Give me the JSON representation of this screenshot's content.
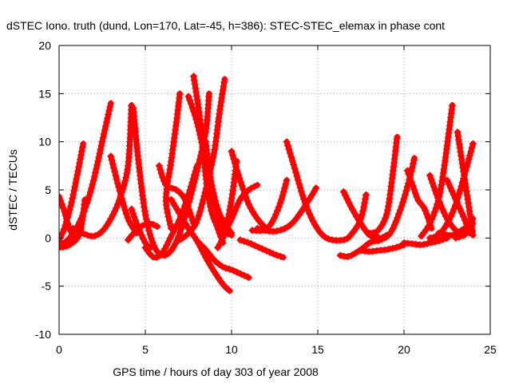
{
  "chart_data": {
    "type": "scatter",
    "title": "dSTEC Iono. truth (dund, Lon=170, Lat=-45, h=386): STEC-STEC_elemax in phase cont",
    "xlabel": "GPS time / hours of day 303 of year 2008",
    "ylabel": "dSTEC  / TECUs",
    "xlim": [
      0,
      25
    ],
    "ylim": [
      -10,
      20
    ],
    "xticks": [
      "0",
      "5",
      "10",
      "15",
      "20",
      "25"
    ],
    "yticks": [
      "-10",
      "-5",
      "0",
      "5",
      "10",
      "15",
      "20"
    ],
    "grid": true,
    "series_color": "#ff0000",
    "marker": "plus",
    "arcs": [
      [
        [
          0.0,
          4.3
        ],
        [
          0.3,
          2.8
        ],
        [
          0.6,
          1.0
        ],
        [
          0.9,
          0.0
        ]
      ],
      [
        [
          0.0,
          -0.2
        ],
        [
          0.3,
          1.0
        ],
        [
          0.7,
          3.5
        ],
        [
          1.1,
          7.0
        ],
        [
          1.4,
          9.8
        ]
      ],
      [
        [
          0.0,
          -0.8
        ],
        [
          0.5,
          -0.2
        ],
        [
          1.0,
          1.0
        ],
        [
          1.5,
          3.0
        ],
        [
          2.0,
          6.0
        ],
        [
          2.5,
          10.0
        ],
        [
          3.0,
          14.0
        ]
      ],
      [
        [
          0.0,
          -1.0
        ],
        [
          0.6,
          -0.7
        ],
        [
          1.2,
          0.5
        ],
        [
          1.5,
          4.0
        ]
      ],
      [
        [
          0.8,
          1.0
        ],
        [
          1.5,
          0.4
        ],
        [
          2.0,
          0.2
        ],
        [
          2.5,
          0.7
        ],
        [
          3.0,
          2.0
        ],
        [
          3.5,
          4.0
        ],
        [
          4.0,
          7.5
        ],
        [
          4.2,
          13.8
        ]
      ],
      [
        [
          3.0,
          8.5
        ],
        [
          3.5,
          5.0
        ],
        [
          4.0,
          2.0
        ],
        [
          4.5,
          0.5
        ]
      ],
      [
        [
          4.2,
          3.0
        ],
        [
          4.5,
          1.5
        ],
        [
          5.0,
          -0.5
        ],
        [
          5.3,
          -1.0
        ]
      ],
      [
        [
          4.0,
          -0.2
        ],
        [
          4.6,
          1.0
        ],
        [
          5.2,
          1.5
        ],
        [
          5.7,
          1.2
        ]
      ],
      [
        [
          4.3,
          13.5
        ],
        [
          4.6,
          8.0
        ],
        [
          5.0,
          2.5
        ],
        [
          5.5,
          -0.8
        ],
        [
          6.0,
          -1.8
        ],
        [
          6.5,
          -1.3
        ],
        [
          7.0,
          0.5
        ],
        [
          7.5,
          3.5
        ],
        [
          8.0,
          7.0
        ],
        [
          8.5,
          11.0
        ],
        [
          8.7,
          15.0
        ]
      ],
      [
        [
          5.0,
          -1.0
        ],
        [
          5.5,
          -2.0
        ],
        [
          6.0,
          -1.5
        ],
        [
          6.5,
          0.2
        ],
        [
          7.0,
          2.0
        ],
        [
          7.5,
          4.5
        ],
        [
          8.0,
          7.5
        ]
      ],
      [
        [
          5.8,
          7.5
        ],
        [
          6.2,
          5.5
        ],
        [
          6.8,
          5.0
        ],
        [
          7.3,
          4.0
        ],
        [
          7.8,
          1.5
        ]
      ],
      [
        [
          6.5,
          1.0
        ],
        [
          6.2,
          4.0
        ],
        [
          6.5,
          8.0
        ],
        [
          6.8,
          12.0
        ],
        [
          7.0,
          15.0
        ]
      ],
      [
        [
          7.5,
          14.7
        ],
        [
          8.0,
          12.0
        ],
        [
          8.5,
          8.0
        ],
        [
          9.0,
          4.0
        ],
        [
          9.5,
          1.0
        ],
        [
          10.0,
          0.3
        ]
      ],
      [
        [
          7.8,
          16.8
        ],
        [
          8.2,
          12.0
        ],
        [
          8.5,
          6.5
        ],
        [
          8.8,
          3.0
        ],
        [
          9.2,
          1.0
        ],
        [
          9.5,
          -0.5
        ]
      ],
      [
        [
          6.5,
          4.0
        ],
        [
          7.0,
          2.5
        ],
        [
          7.5,
          1.0
        ],
        [
          8.0,
          -0.3
        ],
        [
          8.5,
          -2.0
        ],
        [
          9.0,
          -3.5
        ],
        [
          9.5,
          -4.8
        ],
        [
          9.9,
          -5.5
        ]
      ],
      [
        [
          7.0,
          -0.2
        ],
        [
          7.5,
          0.5
        ],
        [
          8.0,
          1.8
        ],
        [
          8.5,
          5.0
        ],
        [
          9.0,
          9.0
        ],
        [
          9.3,
          13.0
        ],
        [
          9.6,
          16.5
        ]
      ],
      [
        [
          8.5,
          10.0
        ],
        [
          8.8,
          6.0
        ],
        [
          9.2,
          3.0
        ],
        [
          9.6,
          1.5
        ],
        [
          10.0,
          0.5
        ]
      ],
      [
        [
          8.0,
          -0.3
        ],
        [
          8.5,
          -1.2
        ],
        [
          9.0,
          -2.3
        ],
        [
          9.5,
          -3.0
        ],
        [
          10.0,
          -3.3
        ],
        [
          10.5,
          -3.7
        ],
        [
          11.0,
          -4.1
        ]
      ],
      [
        [
          9.5,
          0.2
        ],
        [
          10.0,
          2.0
        ],
        [
          10.5,
          4.0
        ],
        [
          11.0,
          5.0
        ],
        [
          11.5,
          5.5
        ]
      ],
      [
        [
          9.2,
          -1.0
        ],
        [
          9.6,
          0.5
        ],
        [
          10.0,
          4.0
        ],
        [
          10.3,
          8.0
        ]
      ],
      [
        [
          10.0,
          9.0
        ],
        [
          10.5,
          6.0
        ],
        [
          11.0,
          3.5
        ],
        [
          11.5,
          2.0
        ],
        [
          12.0,
          1.0
        ]
      ],
      [
        [
          10.5,
          -0.2
        ],
        [
          11.0,
          -0.5
        ],
        [
          11.5,
          -0.9
        ],
        [
          12.0,
          -1.3
        ],
        [
          12.5,
          -1.7
        ],
        [
          13.0,
          -2.0
        ]
      ],
      [
        [
          11.2,
          0.8
        ],
        [
          11.8,
          0.8
        ],
        [
          12.3,
          1.5
        ],
        [
          12.8,
          3.5
        ],
        [
          13.2,
          6.0
        ]
      ],
      [
        [
          13.2,
          10.0
        ],
        [
          13.7,
          7.0
        ],
        [
          14.2,
          4.0
        ],
        [
          14.8,
          1.5
        ],
        [
          15.5,
          0.0
        ],
        [
          16.5,
          -0.2
        ],
        [
          17.0,
          0.5
        ],
        [
          17.5,
          2.0
        ],
        [
          17.8,
          4.5
        ]
      ],
      [
        [
          11.5,
          1.0
        ],
        [
          12.5,
          0.7
        ],
        [
          13.5,
          1.5
        ],
        [
          14.5,
          4.0
        ],
        [
          14.9,
          5.2
        ]
      ],
      [
        [
          16.3,
          -1.8
        ],
        [
          16.8,
          -1.9
        ],
        [
          17.5,
          -1.2
        ],
        [
          18.0,
          -0.5
        ],
        [
          18.5,
          -0.2
        ],
        [
          19.0,
          0.3
        ]
      ],
      [
        [
          16.5,
          4.8
        ],
        [
          17.0,
          3.0
        ],
        [
          17.5,
          1.5
        ],
        [
          18.0,
          0.3
        ],
        [
          18.5,
          0.1
        ]
      ],
      [
        [
          17.5,
          -1.3
        ],
        [
          18.0,
          -1.4
        ],
        [
          18.5,
          -1.3
        ],
        [
          19.0,
          -1.2
        ],
        [
          19.5,
          -1.0
        ],
        [
          20.0,
          -0.7
        ]
      ],
      [
        [
          18.0,
          0.5
        ],
        [
          18.5,
          0.8
        ],
        [
          19.0,
          2.5
        ],
        [
          19.3,
          6.0
        ],
        [
          19.6,
          10.5
        ]
      ],
      [
        [
          18.5,
          -0.3
        ],
        [
          19.2,
          0.5
        ],
        [
          19.8,
          3.0
        ],
        [
          20.3,
          6.0
        ],
        [
          20.6,
          8.3
        ]
      ],
      [
        [
          20.2,
          7.0
        ],
        [
          20.5,
          5.5
        ],
        [
          20.8,
          4.0
        ],
        [
          21.2,
          3.0
        ],
        [
          21.6,
          1.0
        ]
      ],
      [
        [
          20.0,
          -0.5
        ],
        [
          20.5,
          -0.6
        ],
        [
          21.0,
          -0.7
        ],
        [
          21.5,
          -0.5
        ],
        [
          22.0,
          -0.3
        ],
        [
          22.5,
          0.0
        ]
      ],
      [
        [
          21.0,
          0.2
        ],
        [
          21.5,
          1.5
        ],
        [
          22.0,
          4.0
        ],
        [
          22.3,
          7.0
        ],
        [
          22.6,
          11.0
        ],
        [
          22.8,
          13.8
        ]
      ],
      [
        [
          21.5,
          6.5
        ],
        [
          22.0,
          4.0
        ],
        [
          22.5,
          2.0
        ],
        [
          23.0,
          0.8
        ],
        [
          23.5,
          0.3
        ]
      ],
      [
        [
          22.5,
          6.0
        ],
        [
          23.0,
          4.0
        ],
        [
          23.5,
          2.0
        ],
        [
          23.8,
          0.5
        ]
      ],
      [
        [
          23.1,
          11.0
        ],
        [
          23.4,
          7.5
        ],
        [
          23.7,
          4.0
        ],
        [
          24.0,
          0.3
        ]
      ],
      [
        [
          21.5,
          0.0
        ],
        [
          22.0,
          0.3
        ],
        [
          22.5,
          1.5
        ],
        [
          23.0,
          3.5
        ],
        [
          23.5,
          6.5
        ],
        [
          24.0,
          9.8
        ]
      ],
      [
        [
          22.0,
          0.5
        ],
        [
          22.8,
          0.3
        ],
        [
          23.5,
          1.0
        ],
        [
          24.0,
          1.5
        ]
      ],
      [
        [
          23.0,
          0.0
        ],
        [
          23.6,
          0.5
        ],
        [
          24.0,
          2.0
        ]
      ]
    ]
  }
}
